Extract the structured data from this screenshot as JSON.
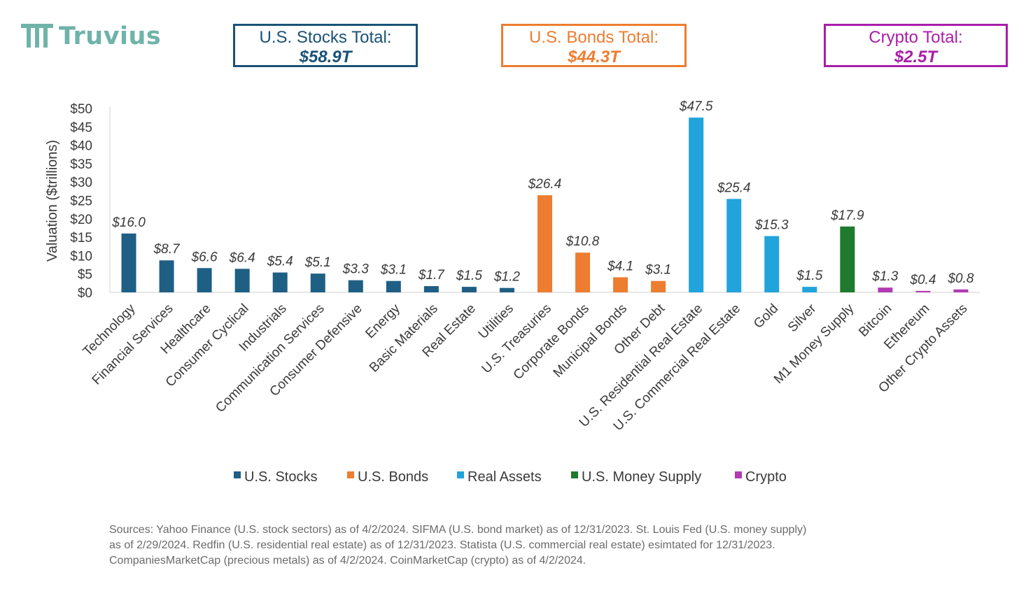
{
  "brand": {
    "name": "Truvius",
    "logo_icon": "truvius-logo-icon"
  },
  "totals": [
    {
      "id": "stocks",
      "label": "U.S. Stocks Total:",
      "value": "$58.9T",
      "color": "#1a5276"
    },
    {
      "id": "bonds",
      "label": "U.S. Bonds Total:",
      "value": "$44.3T",
      "color": "#ed7d31"
    },
    {
      "id": "crypto",
      "label": "Crypto Total:",
      "value": "$2.5T",
      "color": "#a81ea8"
    }
  ],
  "chart_data": {
    "type": "bar",
    "title": "",
    "xlabel": "",
    "ylabel": "Valuation ($trillions)",
    "ylim": [
      0,
      50
    ],
    "yticks": [
      0,
      5,
      10,
      15,
      20,
      25,
      30,
      35,
      40,
      45,
      50
    ],
    "ytick_labels": [
      "$0",
      "$5",
      "$10",
      "$15",
      "$20",
      "$25",
      "$30",
      "$35",
      "$40",
      "$45",
      "$50"
    ],
    "groups": [
      {
        "name": "U.S. Stocks",
        "color": "#1f5f84"
      },
      {
        "name": "U.S. Bonds",
        "color": "#ed7d31"
      },
      {
        "name": "Real Assets",
        "color": "#20a4db"
      },
      {
        "name": "U.S. Money Supply",
        "color": "#1e7a2e"
      },
      {
        "name": "Crypto",
        "color": "#b23ab2"
      }
    ],
    "legend_position": "bottom",
    "categories": [
      "Technology",
      "Financial Services",
      "Healthcare",
      "Consumer Cyclical",
      "Industrials",
      "Communication Services",
      "Consumer Defensive",
      "Energy",
      "Basic Materials",
      "Real Estate",
      "Utilities",
      "U.S. Treasuries",
      "Corporate Bonds",
      "Municipal Bonds",
      "Other Debt",
      "U.S. Residential Real Estate",
      "U.S. Commercial Real Estate",
      "Gold",
      "Silver",
      "M1 Money Supply",
      "Bitcoin",
      "Ethereum",
      "Other Crypto Assets"
    ],
    "values": [
      16.0,
      8.7,
      6.6,
      6.4,
      5.4,
      5.1,
      3.3,
      3.1,
      1.7,
      1.5,
      1.2,
      26.4,
      10.8,
      4.1,
      3.1,
      47.5,
      25.4,
      15.3,
      1.5,
      17.9,
      1.3,
      0.4,
      0.8
    ],
    "data_labels": [
      "$16.0",
      "$8.7",
      "$6.6",
      "$6.4",
      "$5.4",
      "$5.1",
      "$3.3",
      "$3.1",
      "$1.7",
      "$1.5",
      "$1.2",
      "$26.4",
      "$10.8",
      "$4.1",
      "$3.1",
      "$47.5",
      "$25.4",
      "$15.3",
      "$1.5",
      "$17.9",
      "$1.3",
      "$0.4",
      "$0.8"
    ],
    "group_index": [
      0,
      0,
      0,
      0,
      0,
      0,
      0,
      0,
      0,
      0,
      0,
      1,
      1,
      1,
      1,
      2,
      2,
      2,
      2,
      3,
      4,
      4,
      4
    ]
  },
  "sources": [
    "Sources: Yahoo Finance (U.S. stock sectors) as of 4/2/2024. SIFMA (U.S. bond market) as of 12/31/2023. St. Louis Fed (U.S. money supply)",
    "as of 2/29/2024. Redfin (U.S. residential real estate) as of 12/31/2023. Statista (U.S. commercial real estate) esimtated for 12/31/2023.",
    "CompaniesMarketCap (precious metals) as of 4/2/2024. CoinMarketCap (crypto) as of 4/2/2024."
  ]
}
